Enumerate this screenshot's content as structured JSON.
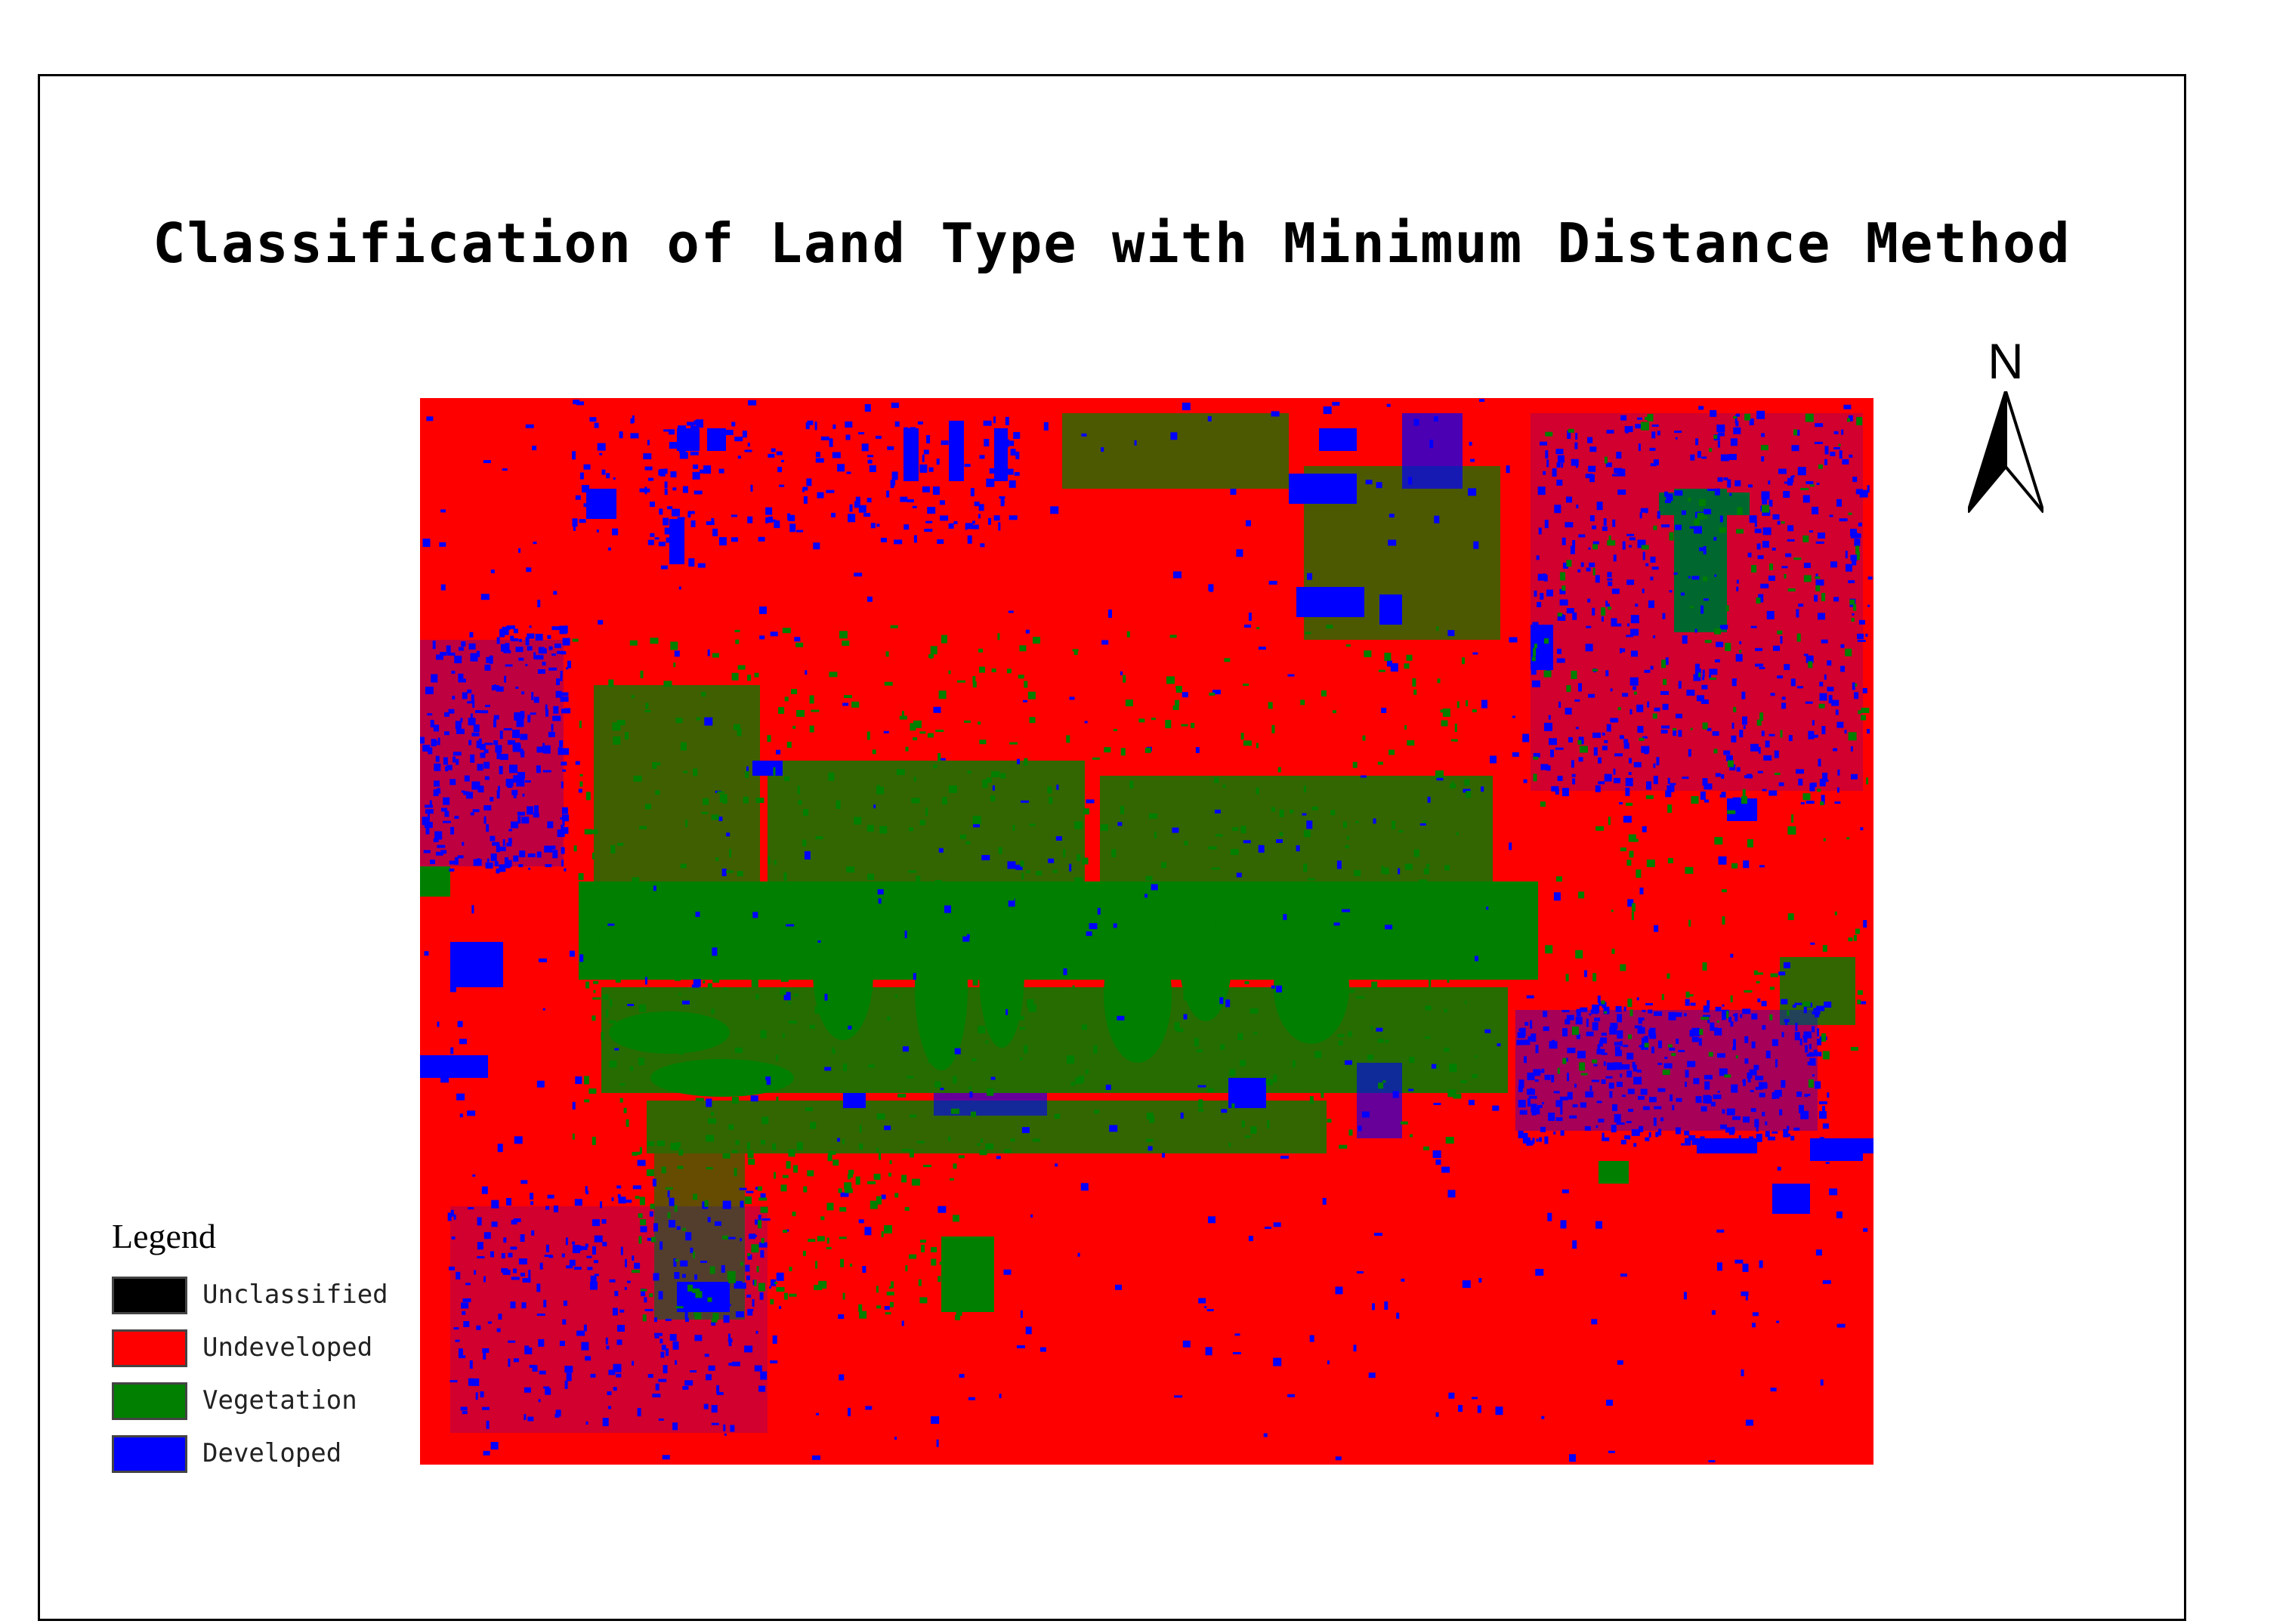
{
  "title": "Classification of Land Type with Minimum Distance Method",
  "north_arrow": {
    "label": "N"
  },
  "legend": {
    "title": "Legend",
    "items": [
      {
        "label": "Unclassified",
        "color": "#000000"
      },
      {
        "label": "Undeveloped",
        "color": "#ff0000"
      },
      {
        "label": "Vegetation",
        "color": "#007f00"
      },
      {
        "label": "Developed",
        "color": "#0000ff"
      }
    ]
  },
  "map": {
    "background_class": "Undeveloped",
    "colors": {
      "undeveloped": "#ff0000",
      "vegetation": "#007f00",
      "developed": "#0000ff"
    }
  }
}
